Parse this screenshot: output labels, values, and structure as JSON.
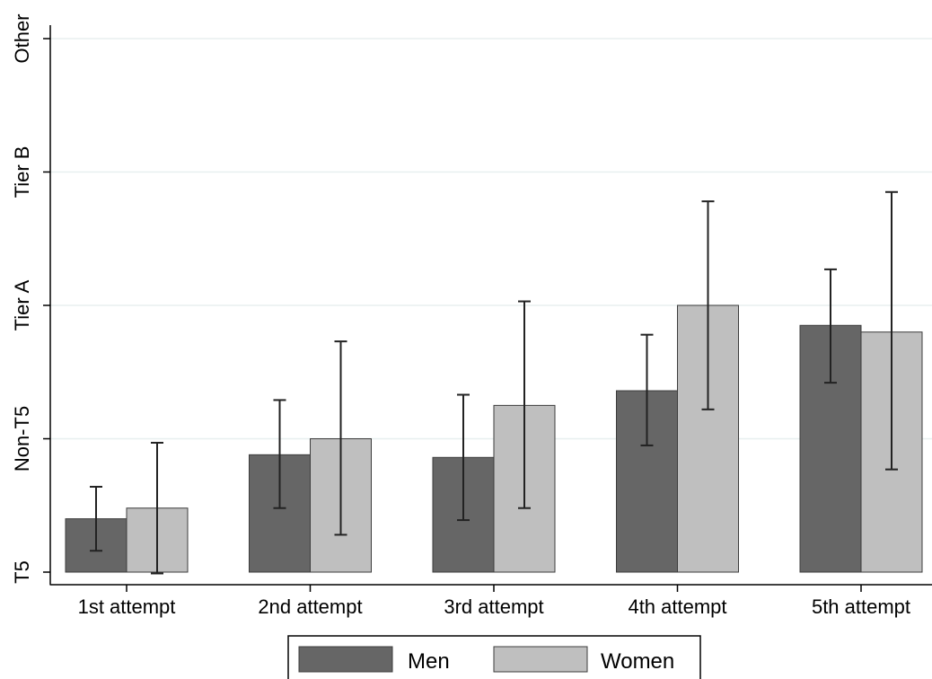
{
  "chart_data": {
    "type": "bar",
    "title": "",
    "xlabel": "",
    "ylabel": "",
    "categories": [
      "1st attempt",
      "2nd attempt",
      "3rd attempt",
      "4th attempt",
      "5th attempt"
    ],
    "y_tick_labels": [
      "T5",
      "Non-T5",
      "Tier A",
      "Tier B",
      "Other"
    ],
    "y_tick_values": [
      0,
      1,
      2,
      3,
      4
    ],
    "ylim": [
      0,
      4.06
    ],
    "grid": true,
    "legend_position": "bottom",
    "series": [
      {
        "name": "Men",
        "color": "#666666",
        "values": [
          0.4,
          0.88,
          0.86,
          1.36,
          1.85
        ],
        "ci_low": [
          0.16,
          0.48,
          0.39,
          0.95,
          1.42
        ],
        "ci_high": [
          0.64,
          1.29,
          1.33,
          1.78,
          2.27
        ]
      },
      {
        "name": "Women",
        "color": "#bfbfbf",
        "values": [
          0.48,
          1.0,
          1.25,
          2.0,
          1.8
        ],
        "ci_low": [
          -0.01,
          0.28,
          0.48,
          1.22,
          0.77
        ],
        "ci_high": [
          0.97,
          1.73,
          2.03,
          2.78,
          2.85
        ]
      }
    ]
  }
}
